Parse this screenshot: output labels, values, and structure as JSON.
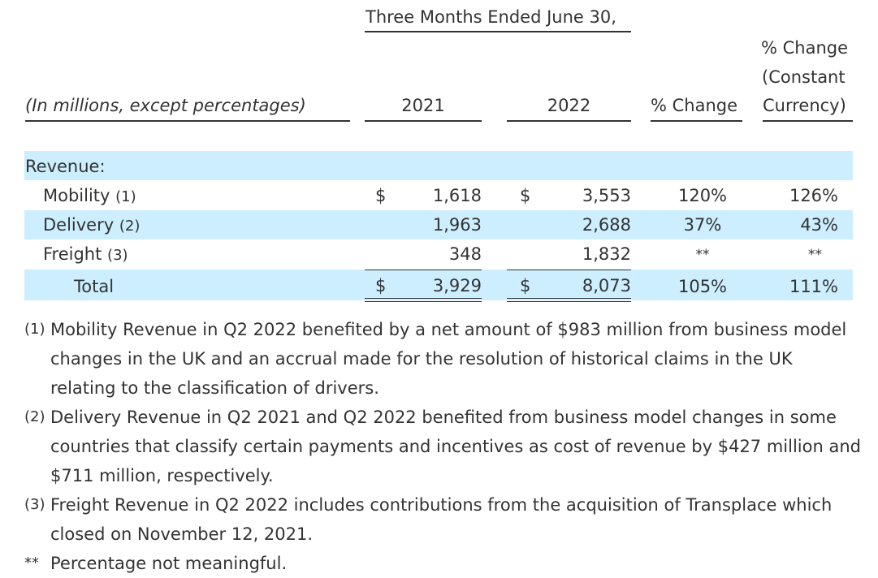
{
  "header": {
    "period": "Three Months Ended June 30,",
    "units": "(In millions, except percentages)",
    "col_2021": "2021",
    "col_2022": "2022",
    "col_change": "% Change",
    "col_cc_line1": "% Change",
    "col_cc_line2": "(Constant",
    "col_cc_line3": "Currency)"
  },
  "table": {
    "section_label": "Revenue:",
    "rows": [
      {
        "label": "Mobility",
        "note": "(1)",
        "cur2021": "$",
        "v2021": "1,618",
        "cur2022": "$",
        "v2022": "3,553",
        "change": "120%",
        "cc": "126%"
      },
      {
        "label": "Delivery",
        "note": "(2)",
        "cur2021": "",
        "v2021": "1,963",
        "cur2022": "",
        "v2022": "2,688",
        "change": "37%",
        "cc": "43%"
      },
      {
        "label": "Freight",
        "note": "(3)",
        "cur2021": "",
        "v2021": "348",
        "cur2022": "",
        "v2022": "1,832",
        "change": "**",
        "cc": "**"
      }
    ],
    "total": {
      "label": "Total",
      "cur2021": "$",
      "v2021": "3,929",
      "cur2022": "$",
      "v2022": "8,073",
      "change": "105%",
      "cc": "111%"
    }
  },
  "footnotes": [
    {
      "mark": "(1)",
      "text": "Mobility Revenue in Q2 2022 benefited by a net amount of $983 million from business model changes in the UK and an accrual made for the resolution of historical claims in the UK relating to the classification of drivers."
    },
    {
      "mark": "(2)",
      "text": "Delivery Revenue in Q2 2021 and Q2 2022 benefited from business model changes in some countries that classify certain payments and incentives as cost of revenue by $427 million and $711 million, respectively."
    },
    {
      "mark": "(3)",
      "text": "Freight Revenue in Q2 2022 includes contributions from the acquisition of Transplace which closed on November 12, 2021."
    },
    {
      "mark": "**",
      "text": "Percentage not meaningful."
    }
  ]
}
